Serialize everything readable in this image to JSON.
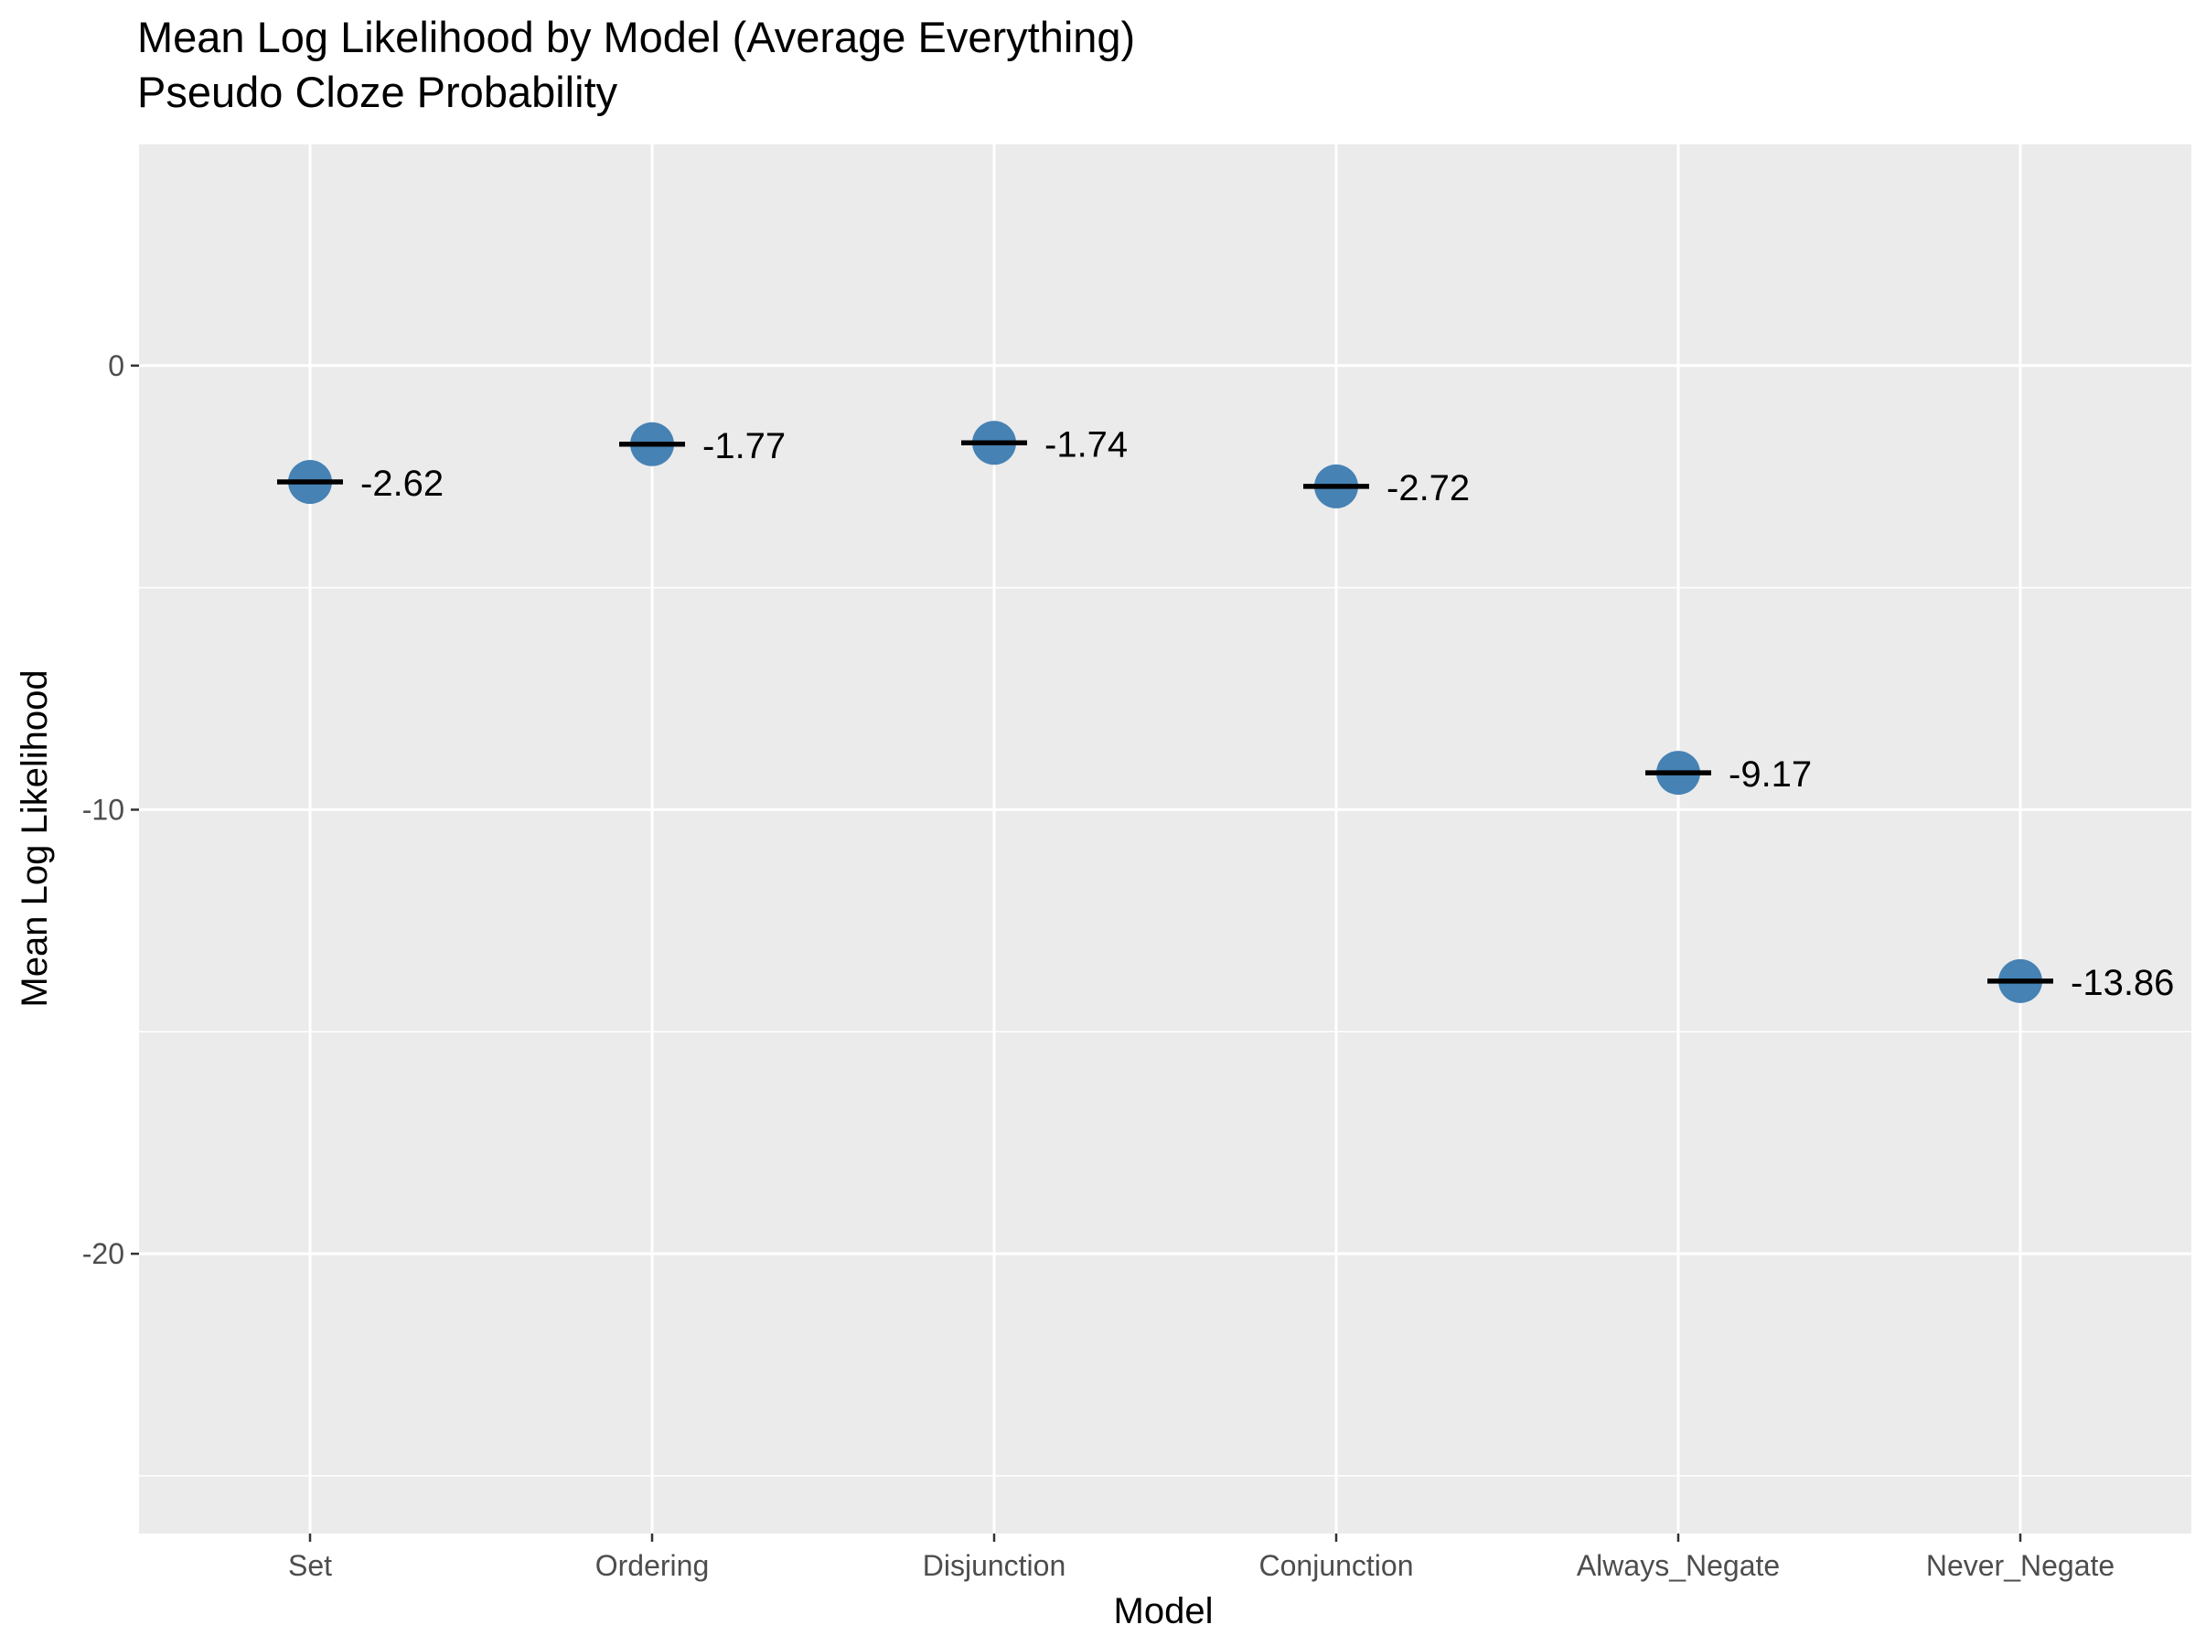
{
  "chart_data": {
    "type": "scatter",
    "title": "Mean Log Likelihood by Model (Average Everything)",
    "subtitle": "Pseudo Cloze Probability",
    "xlabel": "Model",
    "ylabel": "Mean Log Likelihood",
    "categories": [
      "Set",
      "Ordering",
      "Disjunction",
      "Conjunction",
      "Always_Negate",
      "Never_Negate"
    ],
    "values": [
      -2.62,
      -1.77,
      -1.74,
      -2.72,
      -9.17,
      -13.86
    ],
    "labels": [
      "-2.62",
      "-1.77",
      "-1.74",
      "-2.72",
      "-9.17",
      "-13.86"
    ],
    "y_ticks": [
      0,
      -10,
      -20
    ],
    "y_tick_labels": [
      "0",
      "-10",
      "-20"
    ],
    "ylim": [
      -26.3,
      5
    ],
    "grid": true,
    "point_color": "#4682B4",
    "panel_background": "#EBEBEB",
    "mean_line_color": "#000000"
  }
}
